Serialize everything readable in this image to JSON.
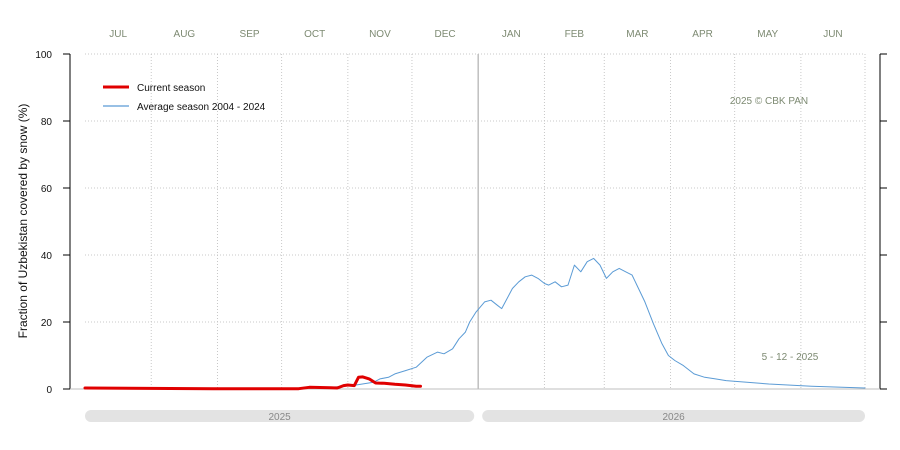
{
  "chart_data": {
    "type": "line",
    "title": "",
    "ylabel": "Fraction of  Uzbekistan  covered by snow (%)",
    "xlabel": "",
    "ylim": [
      0,
      100
    ],
    "yticks": [
      0,
      20,
      40,
      60,
      80,
      100
    ],
    "months": [
      "JUL",
      "AUG",
      "SEP",
      "OCT",
      "NOV",
      "DEC",
      "JAN",
      "FEB",
      "MAR",
      "APR",
      "MAY",
      "JUN"
    ],
    "years": [
      "2025",
      "2026"
    ],
    "x_unit": "day of season (day 0 = Jul 1, 2025)",
    "grid": true,
    "legend_position": "top-left",
    "annotations": {
      "copyright": "2025  © CBK PAN",
      "date": "5 - 12 - 2025"
    },
    "series": [
      {
        "name": "Average season 2004 - 2024",
        "color": "#5b9bd5",
        "x": [
          0,
          60,
          100,
          115,
          125,
          135,
          138,
          142,
          145,
          150,
          155,
          160,
          165,
          168,
          172,
          175,
          178,
          180,
          183,
          187,
          190,
          193,
          195,
          200,
          203,
          206,
          209,
          212,
          215,
          217,
          220,
          223,
          226,
          229,
          232,
          235,
          238,
          241,
          244,
          247,
          250,
          253,
          256,
          259,
          262,
          266,
          270,
          273,
          276,
          280,
          285,
          290,
          295,
          300,
          320,
          340,
          365
        ],
        "values": [
          0.1,
          0.1,
          0.2,
          0.5,
          1.0,
          2.0,
          3.0,
          3.5,
          4.5,
          5.5,
          6.5,
          9.5,
          11,
          10.5,
          12,
          15,
          17,
          20,
          23,
          26,
          26.5,
          25,
          24,
          30,
          32,
          33.5,
          34,
          33,
          31.5,
          31,
          32,
          30.5,
          31,
          37,
          35,
          38,
          39,
          37,
          33,
          35,
          36,
          35,
          34,
          30,
          26,
          19.5,
          13.5,
          10,
          8.5,
          7,
          4.5,
          3.5,
          3,
          2.5,
          1.5,
          0.8,
          0.3
        ]
      },
      {
        "name": "Current season",
        "color": "#e00000",
        "x": [
          0,
          60,
          80,
          100,
          105,
          115,
          118,
          121,
          123,
          126,
          128,
          130,
          133,
          136,
          140,
          145,
          150,
          155,
          157
        ],
        "values": [
          0.3,
          0.1,
          0.1,
          0.1,
          0.5,
          0.4,
          0.3,
          1.0,
          1.2,
          1.0,
          3.5,
          3.6,
          3.0,
          1.8,
          1.7,
          1.4,
          1.2,
          0.8,
          0.8
        ]
      }
    ]
  }
}
